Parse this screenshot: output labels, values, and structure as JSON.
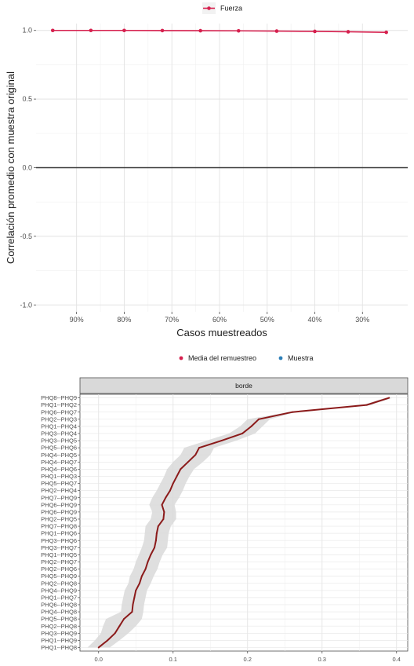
{
  "chart_data": [
    {
      "type": "line",
      "legend_position": "top",
      "series": [
        {
          "name": "Fuerza",
          "color": "#d6204e",
          "x": [
            "95%",
            "87%",
            "80%",
            "72%",
            "64%",
            "56%",
            "48%",
            "40%",
            "33%",
            "25%"
          ],
          "values": [
            1.0,
            1.0,
            1.0,
            0.999,
            0.998,
            0.997,
            0.995,
            0.993,
            0.99,
            0.986
          ]
        }
      ],
      "x_ticks": [
        "90%",
        "80%",
        "70%",
        "60%",
        "50%",
        "40%",
        "30%"
      ],
      "x_tick_values": [
        90,
        80,
        70,
        60,
        50,
        40,
        30
      ],
      "xlim": [
        98.5,
        20.5
      ],
      "ylim": [
        -1.05,
        1.05
      ],
      "y_ticks": [
        "1.0",
        "0.5",
        "0.0",
        "-0.5",
        "-1.0"
      ],
      "y_tick_values": [
        1.0,
        0.5,
        0.0,
        -0.5,
        -1.0
      ],
      "reference_line": 0.0,
      "xlabel": "Casos muestreados",
      "ylabel": "Correlación promedio con muestra original",
      "grid": true
    },
    {
      "type": "line",
      "legend_position": "top",
      "legend": [
        {
          "name": "Media del remuestreo",
          "color": "#d6204e"
        },
        {
          "name": "Muestra",
          "color": "#2c7fb8"
        }
      ],
      "facet_label": "borde",
      "band_color": "#d9d9d9",
      "line_color": "#8b1a1a",
      "categories": [
        "PHQ8--PHQ9",
        "PHQ1--PHQ2",
        "PHQ6--PHQ7",
        "PHQ2--PHQ3",
        "PHQ1--PHQ4",
        "PHQ3--PHQ4",
        "PHQ3--PHQ5",
        "PHQ5--PHQ6",
        "PHQ4--PHQ5",
        "PHQ4--PHQ7",
        "PHQ4--PHQ6",
        "PHQ1--PHQ3",
        "PHQ5--PHQ7",
        "PHQ2--PHQ4",
        "PHQ7--PHQ9",
        "PHQ6--PHQ9",
        "PHQ6--PHQ9",
        "PHQ2--PHQ5",
        "PHQ7--PHQ8",
        "PHQ1--PHQ6",
        "PHQ3--PHQ6",
        "PHQ3--PHQ7",
        "PHQ1--PHQ5",
        "PHQ2--PHQ7",
        "PHQ2--PHQ6",
        "PHQ5--PHQ9",
        "PHQ2--PHQ8",
        "PHQ4--PHQ9",
        "PHQ1--PHQ7",
        "PHQ6--PHQ8",
        "PHQ4--PHQ8",
        "PHQ5--PHQ8",
        "PHQ2--PHQ8",
        "PHQ3--PHQ9",
        "PHQ1--PHQ9",
        "PHQ1--PHQ8"
      ],
      "values": [
        0.39,
        0.36,
        0.26,
        0.215,
        0.205,
        0.193,
        0.165,
        0.135,
        0.13,
        0.12,
        0.11,
        0.105,
        0.1,
        0.096,
        0.09,
        0.085,
        0.088,
        0.087,
        0.08,
        0.078,
        0.077,
        0.075,
        0.07,
        0.066,
        0.063,
        0.058,
        0.055,
        0.05,
        0.048,
        0.046,
        0.045,
        0.034,
        0.028,
        0.022,
        0.012,
        0.0
      ],
      "lower": [
        0.385,
        0.355,
        0.255,
        0.2,
        0.19,
        0.175,
        0.145,
        0.115,
        0.11,
        0.1,
        0.092,
        0.088,
        0.083,
        0.078,
        0.072,
        0.068,
        0.072,
        0.07,
        0.063,
        0.062,
        0.061,
        0.058,
        0.054,
        0.05,
        0.047,
        0.042,
        0.04,
        0.035,
        0.033,
        0.031,
        0.03,
        0.01,
        0.006,
        0.003,
        -0.005,
        -0.015
      ],
      "upper": [
        0.395,
        0.365,
        0.265,
        0.23,
        0.22,
        0.21,
        0.185,
        0.155,
        0.15,
        0.14,
        0.128,
        0.122,
        0.117,
        0.113,
        0.108,
        0.102,
        0.104,
        0.104,
        0.097,
        0.094,
        0.093,
        0.092,
        0.086,
        0.082,
        0.079,
        0.074,
        0.07,
        0.065,
        0.063,
        0.061,
        0.06,
        0.058,
        0.05,
        0.04,
        0.028,
        0.015
      ],
      "x_ticks": [
        "0.0",
        "0.1",
        "0.2",
        "0.3",
        "0.4"
      ],
      "x_tick_values": [
        0.0,
        0.1,
        0.2,
        0.3,
        0.4
      ],
      "xlim": [
        -0.025,
        0.415
      ],
      "grid": true
    }
  ]
}
